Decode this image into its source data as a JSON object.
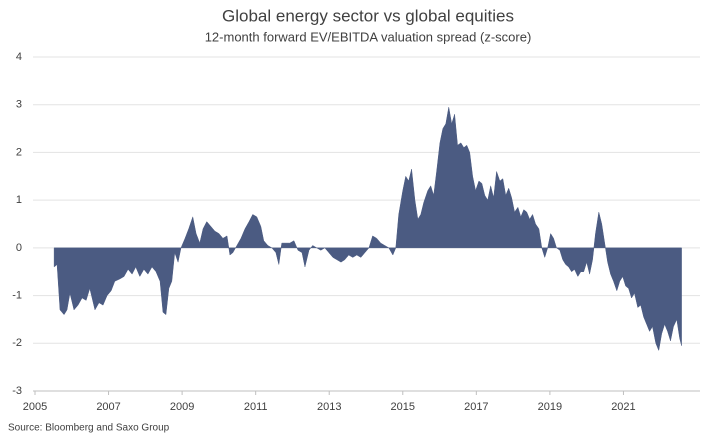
{
  "chart_data": {
    "type": "area",
    "title": "Global energy sector vs global equities",
    "subtitle": "12-month forward EV/EBITDA valuation spread (z-score)",
    "source": "Source: Bloomberg and Saxo Group",
    "color": "#4b5b82",
    "grid": true,
    "xlim": [
      2005,
      2023
    ],
    "xticks": [
      2005,
      2007,
      2009,
      2011,
      2013,
      2015,
      2017,
      2019,
      2021
    ],
    "ylim": [
      -3,
      4
    ],
    "yticks": [
      -3,
      -2,
      -1,
      0,
      1,
      2,
      3,
      4
    ],
    "x": [
      2005.52,
      2005.6,
      2005.68,
      2005.79,
      2005.87,
      2005.95,
      2006.06,
      2006.17,
      2006.28,
      2006.39,
      2006.49,
      2006.63,
      2006.74,
      2006.85,
      2006.96,
      2007.07,
      2007.17,
      2007.31,
      2007.42,
      2007.53,
      2007.64,
      2007.74,
      2007.85,
      2007.96,
      2008.07,
      2008.18,
      2008.29,
      2008.4,
      2008.48,
      2008.56,
      2008.64,
      2008.72,
      2008.8,
      2008.89,
      2008.97,
      2009.08,
      2009.18,
      2009.29,
      2009.38,
      2009.48,
      2009.57,
      2009.67,
      2009.78,
      2009.89,
      2010.0,
      2010.11,
      2010.22,
      2010.3,
      2010.38,
      2010.49,
      2010.6,
      2010.71,
      2010.82,
      2010.92,
      2011.03,
      2011.14,
      2011.22,
      2011.33,
      2011.44,
      2011.55,
      2011.63,
      2011.71,
      2011.82,
      2011.93,
      2012.04,
      2012.15,
      2012.26,
      2012.34,
      2012.45,
      2012.55,
      2012.66,
      2012.77,
      2012.88,
      2012.99,
      2013.1,
      2013.21,
      2013.32,
      2013.42,
      2013.53,
      2013.64,
      2013.75,
      2013.86,
      2013.97,
      2014.08,
      2014.18,
      2014.29,
      2014.4,
      2014.51,
      2014.62,
      2014.73,
      2014.81,
      2014.89,
      2015.0,
      2015.08,
      2015.16,
      2015.24,
      2015.33,
      2015.41,
      2015.49,
      2015.57,
      2015.68,
      2015.76,
      2015.84,
      2015.92,
      2016.01,
      2016.09,
      2016.17,
      2016.25,
      2016.33,
      2016.41,
      2016.49,
      2016.58,
      2016.66,
      2016.74,
      2016.82,
      2016.9,
      2016.98,
      2017.07,
      2017.15,
      2017.23,
      2017.31,
      2017.39,
      2017.47,
      2017.55,
      2017.64,
      2017.72,
      2017.8,
      2017.88,
      2017.96,
      2018.04,
      2018.13,
      2018.21,
      2018.29,
      2018.37,
      2018.45,
      2018.53,
      2018.61,
      2018.7,
      2018.78,
      2018.86,
      2018.94,
      2019.02,
      2019.1,
      2019.18,
      2019.27,
      2019.35,
      2019.43,
      2019.51,
      2019.59,
      2019.67,
      2019.76,
      2019.84,
      2019.92,
      2020.0,
      2020.08,
      2020.16,
      2020.24,
      2020.33,
      2020.41,
      2020.49,
      2020.57,
      2020.65,
      2020.73,
      2020.82,
      2020.9,
      2020.98,
      2021.06,
      2021.14,
      2021.22,
      2021.3,
      2021.39,
      2021.47,
      2021.55,
      2021.63,
      2021.71,
      2021.79,
      2021.88,
      2021.96,
      2022.04,
      2022.12,
      2022.2,
      2022.28,
      2022.36,
      2022.45,
      2022.53,
      2022.58
    ],
    "values": [
      -0.4,
      -0.35,
      -1.3,
      -1.4,
      -1.3,
      -0.95,
      -1.3,
      -1.2,
      -1.05,
      -1.1,
      -0.85,
      -1.3,
      -1.15,
      -1.2,
      -1.0,
      -0.9,
      -0.7,
      -0.65,
      -0.6,
      -0.45,
      -0.55,
      -0.4,
      -0.6,
      -0.45,
      -0.55,
      -0.4,
      -0.5,
      -0.7,
      -1.35,
      -1.4,
      -0.85,
      -0.7,
      -0.1,
      -0.3,
      0.0,
      0.2,
      0.4,
      0.65,
      0.3,
      0.1,
      0.4,
      0.55,
      0.45,
      0.35,
      0.3,
      0.2,
      0.25,
      -0.15,
      -0.1,
      0.05,
      0.2,
      0.4,
      0.55,
      0.7,
      0.65,
      0.45,
      0.15,
      0.05,
      0.0,
      -0.1,
      -0.35,
      0.1,
      0.1,
      0.1,
      0.15,
      -0.05,
      -0.1,
      -0.4,
      -0.05,
      0.05,
      0.0,
      -0.05,
      0.0,
      -0.1,
      -0.2,
      -0.25,
      -0.3,
      -0.25,
      -0.15,
      -0.2,
      -0.15,
      -0.2,
      -0.1,
      0.0,
      0.25,
      0.2,
      0.1,
      0.05,
      0.0,
      -0.15,
      0.0,
      0.7,
      1.2,
      1.5,
      1.4,
      1.65,
      1.0,
      0.6,
      0.7,
      0.95,
      1.2,
      1.3,
      1.1,
      1.6,
      2.2,
      2.5,
      2.6,
      2.95,
      2.6,
      2.8,
      2.15,
      2.2,
      2.1,
      2.15,
      2.0,
      1.5,
      1.2,
      1.4,
      1.35,
      1.1,
      1.0,
      1.3,
      1.05,
      1.6,
      1.4,
      1.45,
      1.1,
      1.25,
      1.05,
      0.75,
      0.85,
      0.65,
      0.8,
      0.75,
      0.6,
      0.7,
      0.5,
      0.4,
      0.0,
      -0.2,
      0.0,
      0.3,
      0.2,
      0.0,
      -0.05,
      -0.25,
      -0.35,
      -0.4,
      -0.5,
      -0.45,
      -0.6,
      -0.5,
      -0.5,
      -0.3,
      -0.55,
      -0.25,
      0.3,
      0.75,
      0.5,
      0.1,
      -0.3,
      -0.55,
      -0.7,
      -0.9,
      -0.7,
      -0.6,
      -0.8,
      -0.85,
      -1.05,
      -0.95,
      -1.25,
      -1.2,
      -1.45,
      -1.6,
      -1.75,
      -1.65,
      -2.0,
      -2.15,
      -1.8,
      -1.6,
      -1.75,
      -1.95,
      -1.65,
      -1.5,
      -1.9,
      -2.05
    ]
  }
}
